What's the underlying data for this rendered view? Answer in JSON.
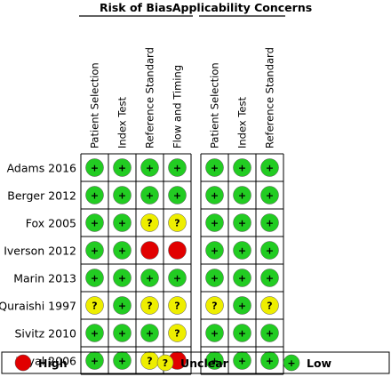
{
  "chart_data": {
    "type": "table",
    "groups": [
      {
        "title": "Risk of Bias",
        "columns": [
          "Patient Selection",
          "Index Test",
          "Reference Standard",
          "Flow and Timing"
        ]
      },
      {
        "title": "Applicability Concerns",
        "columns": [
          "Patient Selection",
          "Index Test",
          "Reference Standard"
        ]
      }
    ],
    "studies": [
      "Adams 2016",
      "Berger 2012",
      "Fox 2005",
      "Iverson 2012",
      "Marin 2013",
      "Quraishi 1997",
      "Sivitz 2010",
      "Tayal 2006"
    ],
    "ratings": [
      [
        "low",
        "low",
        "low",
        "low",
        "low",
        "low",
        "low"
      ],
      [
        "low",
        "low",
        "low",
        "low",
        "low",
        "low",
        "low"
      ],
      [
        "low",
        "low",
        "unclear",
        "unclear",
        "low",
        "low",
        "low"
      ],
      [
        "low",
        "low",
        "high",
        "high",
        "low",
        "low",
        "low"
      ],
      [
        "low",
        "low",
        "low",
        "low",
        "low",
        "low",
        "low"
      ],
      [
        "unclear",
        "low",
        "unclear",
        "unclear",
        "unclear",
        "low",
        "unclear"
      ],
      [
        "low",
        "low",
        "low",
        "unclear",
        "low",
        "low",
        "low"
      ],
      [
        "low",
        "low",
        "unclear",
        "high",
        "low",
        "low",
        "low"
      ]
    ],
    "legend": [
      {
        "key": "high",
        "label": "High",
        "color": "#e10000",
        "symbol": ""
      },
      {
        "key": "unclear",
        "label": "Unclear",
        "color": "#eeee00",
        "symbol": "?"
      },
      {
        "key": "low",
        "label": "Low",
        "color": "#22cc22",
        "symbol": "+"
      }
    ]
  }
}
